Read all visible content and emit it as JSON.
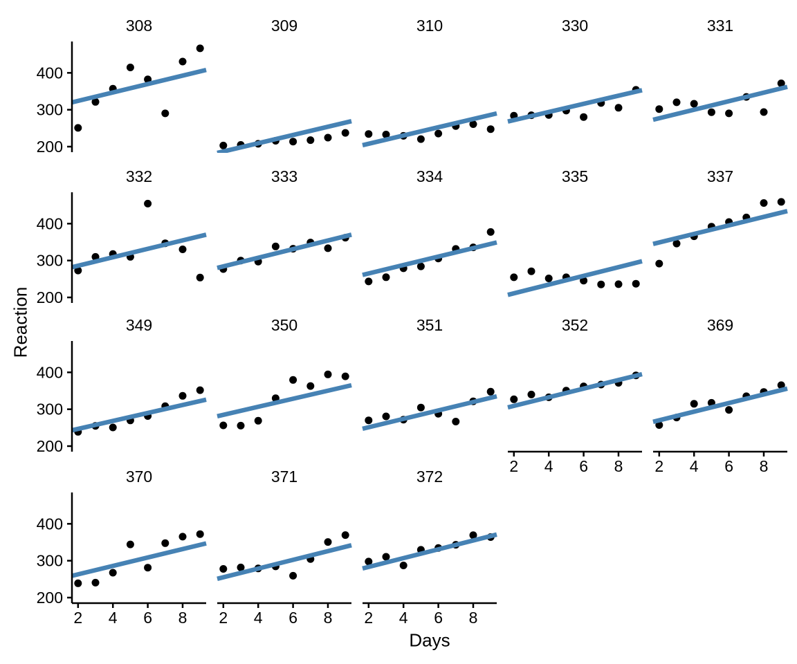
{
  "chart_data": {
    "type": "scatter",
    "title": "",
    "facet_variable": "Subject",
    "xlabel": "Days",
    "ylabel": "Reaction",
    "x_ticks": [
      2,
      4,
      6,
      8
    ],
    "y_ticks": [
      200,
      300,
      400
    ],
    "x_range": [
      1.65,
      9.35
    ],
    "y_range": [
      185,
      485
    ],
    "grid": "off",
    "legend": "none",
    "days": [
      2,
      3,
      4,
      5,
      6,
      7,
      8,
      9
    ],
    "point_color": "#000000",
    "line_color": "#4682B4",
    "axis_color": "#000000",
    "panels": [
      {
        "subject": "308",
        "reaction": [
          250.8,
          321.4,
          356.9,
          414.7,
          382.2,
          290.1,
          430.6,
          466.4
        ],
        "fit_line": {
          "x": [
            1.65,
            9.35
          ],
          "y": [
            320,
            408
          ]
        }
      },
      {
        "subject": "309",
        "reaction": [
          203.0,
          204.7,
          207.7,
          216.0,
          213.6,
          217.7,
          224.3,
          237.3
        ],
        "fit_line": {
          "x": [
            1.65,
            9.35
          ],
          "y": [
            183,
            269
          ]
        }
      },
      {
        "subject": "310",
        "reaction": [
          234.3,
          232.8,
          229.3,
          220.5,
          235.4,
          255.8,
          261.0,
          247.5
        ],
        "fit_line": {
          "x": [
            1.65,
            9.35
          ],
          "y": [
            204,
            290
          ]
        }
      },
      {
        "subject": "330",
        "reaction": [
          283.9,
          285.1,
          285.8,
          297.6,
          280.2,
          318.3,
          305.3,
          354.0
        ],
        "fit_line": {
          "x": [
            1.65,
            9.35
          ],
          "y": [
            268,
            353
          ]
        }
      },
      {
        "subject": "331",
        "reaction": [
          301.8,
          320.1,
          316.3,
          293.3,
          290.1,
          334.8,
          293.7,
          371.6
        ],
        "fit_line": {
          "x": [
            1.65,
            9.35
          ],
          "y": [
            273,
            362
          ]
        }
      },
      {
        "subject": "332",
        "reaction": [
          273.0,
          309.8,
          317.5,
          310.0,
          454.2,
          346.8,
          330.3,
          253.9
        ],
        "fit_line": {
          "x": [
            1.65,
            9.35
          ],
          "y": [
            282,
            370
          ]
        }
      },
      {
        "subject": "333",
        "reaction": [
          276.8,
          299.8,
          297.2,
          338.2,
          332.0,
          348.8,
          333.4,
          362.0
        ],
        "fit_line": {
          "x": [
            1.65,
            9.35
          ],
          "y": [
            280,
            370
          ]
        }
      },
      {
        "subject": "334",
        "reaction": [
          243.4,
          254.7,
          279.0,
          284.2,
          305.5,
          331.5,
          335.7,
          377.3
        ],
        "fit_line": {
          "x": [
            1.65,
            9.35
          ],
          "y": [
            261,
            349
          ]
        }
      },
      {
        "subject": "335",
        "reaction": [
          254.5,
          270.8,
          251.5,
          254.6,
          245.5,
          235.3,
          235.8,
          237.2
        ],
        "fit_line": {
          "x": [
            1.65,
            9.35
          ],
          "y": [
            207,
            298
          ]
        }
      },
      {
        "subject": "337",
        "reaction": [
          291.6,
          346.1,
          365.7,
          391.8,
          404.3,
          416.7,
          455.9,
          458.9
        ],
        "fit_line": {
          "x": [
            1.65,
            9.35
          ],
          "y": [
            345,
            434
          ]
        }
      },
      {
        "subject": "349",
        "reaction": [
          238.9,
          254.9,
          250.7,
          269.8,
          281.6,
          308.1,
          336.3,
          351.6
        ],
        "fit_line": {
          "x": [
            1.65,
            9.35
          ],
          "y": [
            243,
            326
          ]
        }
      },
      {
        "subject": "350",
        "reaction": [
          256.2,
          255.5,
          268.9,
          329.7,
          379.4,
          362.9,
          394.5,
          389.1
        ],
        "fit_line": {
          "x": [
            1.65,
            9.35
          ],
          "y": [
            281,
            365
          ]
        }
      },
      {
        "subject": "351",
        "reaction": [
          269.9,
          280.6,
          271.8,
          304.6,
          287.7,
          266.6,
          321.5,
          347.6
        ],
        "fit_line": {
          "x": [
            1.65,
            9.35
          ],
          "y": [
            247,
            335
          ]
        }
      },
      {
        "subject": "352",
        "reaction": [
          326.9,
          339.9,
          332.4,
          350.4,
          362.0,
          366.8,
          371.6,
          391.8
        ],
        "fit_line": {
          "x": [
            1.65,
            9.35
          ],
          "y": [
            305,
            395
          ]
        }
      },
      {
        "subject": "369",
        "reaction": [
          257.2,
          277.7,
          314.8,
          317.4,
          298.2,
          335.1,
          346.8,
          365.2
        ],
        "fit_line": {
          "x": [
            1.65,
            9.35
          ],
          "y": [
            266,
            356
          ]
        }
      },
      {
        "subject": "370",
        "reaction": [
          238.9,
          240.5,
          267.5,
          344.2,
          281.1,
          347.6,
          365.2,
          372.2
        ],
        "fit_line": {
          "x": [
            1.65,
            9.35
          ],
          "y": [
            259,
            347
          ]
        }
      },
      {
        "subject": "371",
        "reaction": [
          277.9,
          281.8,
          279.2,
          284.5,
          259.3,
          304.6,
          350.8,
          369.5
        ],
        "fit_line": {
          "x": [
            1.65,
            9.35
          ],
          "y": [
            251,
            342
          ]
        }
      },
      {
        "subject": "372",
        "reaction": [
          297.6,
          310.6,
          287.2,
          329.6,
          334.5,
          343.2,
          369.1,
          364.1
        ],
        "fit_line": {
          "x": [
            1.65,
            9.35
          ],
          "y": [
            279,
            371
          ]
        }
      }
    ]
  }
}
